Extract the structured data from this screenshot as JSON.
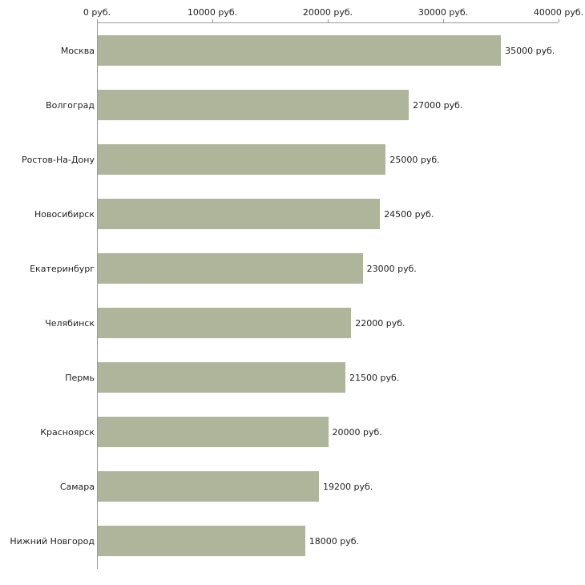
{
  "chart_data": {
    "type": "bar",
    "orientation": "horizontal",
    "title": "",
    "xlabel": "",
    "ylabel": "",
    "xlim": [
      0,
      40000
    ],
    "grid": false,
    "legend": false,
    "categories": [
      "Москва",
      "Волгоград",
      "Ростов-На-Дону",
      "Новосибирск",
      "Екатеринбург",
      "Челябинск",
      "Пермь",
      "Красноярск",
      "Самара",
      "Нижний Новгород"
    ],
    "values": [
      35000,
      27000,
      25000,
      24500,
      23000,
      22000,
      21500,
      20000,
      19200,
      18000
    ],
    "value_labels": [
      "35000 руб.",
      "27000 руб.",
      "25000 руб.",
      "24500 руб.",
      "23000 руб.",
      "22000 руб.",
      "21500 руб.",
      "20000 руб.",
      "19200 руб.",
      "18000 руб."
    ],
    "x_ticks": [
      {
        "value": 0,
        "label": "0 руб."
      },
      {
        "value": 10000,
        "label": "10000 руб."
      },
      {
        "value": 20000,
        "label": "20000 руб."
      },
      {
        "value": 30000,
        "label": "30000 руб."
      },
      {
        "value": 40000,
        "label": "40000 руб."
      }
    ],
    "colors": {
      "bar": "#aeb59b",
      "axis": "#999999",
      "text": "#222222",
      "background": "#ffffff"
    }
  }
}
